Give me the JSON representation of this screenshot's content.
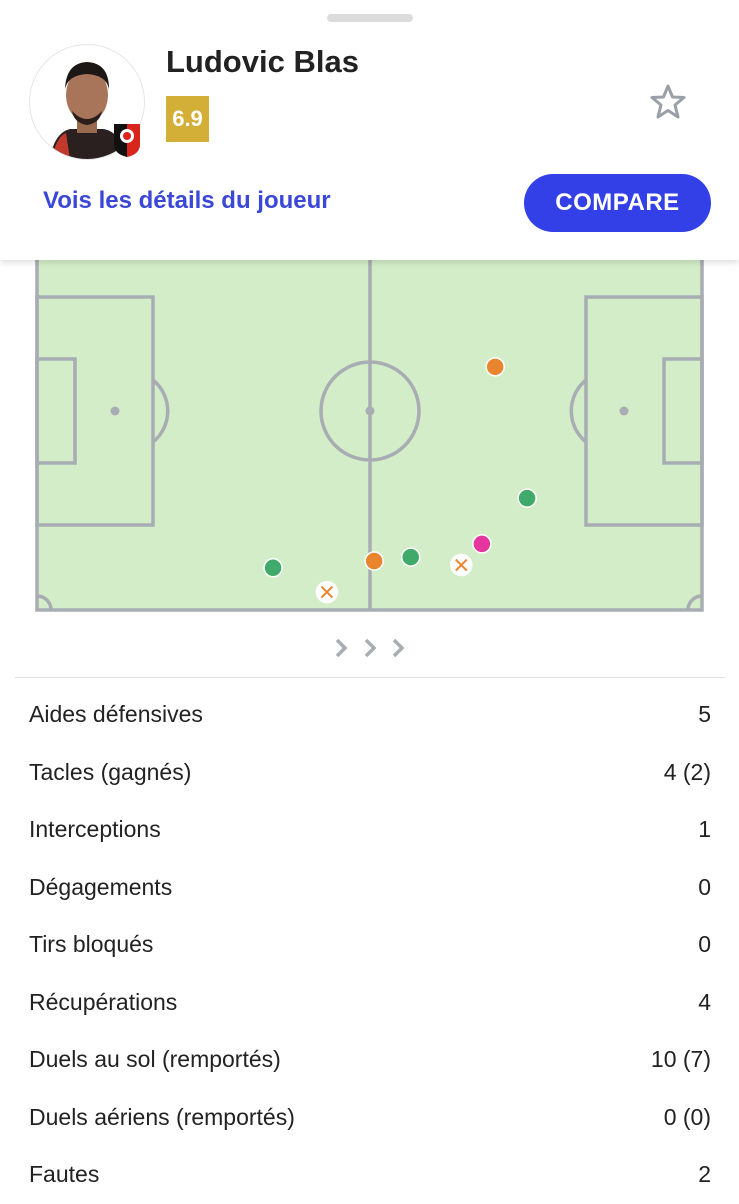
{
  "player": {
    "name": "Ludovic Blas",
    "rating": "6.9",
    "rating_color": "#d4af37",
    "details_link": "Vois les détails du joueur",
    "compare_label": "COMPARE",
    "favorite_icon": "star-outline-icon"
  },
  "colors": {
    "accent": "#3340e8",
    "pitch": "#d3edc8",
    "lines": "#a8acb3",
    "green": "#3faa6a",
    "orange": "#e8852e",
    "pink": "#e6369e"
  },
  "chart_data": {
    "type": "scatter",
    "coordinate_system": "pitch 0-100 (x: own goal to opponent goal, y: top to bottom touchline)",
    "points": [
      {
        "x": 68.9,
        "y": 38.9,
        "kind": "orange"
      },
      {
        "x": 73.7,
        "y": 71.9,
        "kind": "green"
      },
      {
        "x": 66.9,
        "y": 83.4,
        "kind": "pink"
      },
      {
        "x": 63.8,
        "y": 88.7,
        "kind": "cross"
      },
      {
        "x": 56.2,
        "y": 86.7,
        "kind": "green"
      },
      {
        "x": 50.7,
        "y": 87.7,
        "kind": "orange"
      },
      {
        "x": 35.5,
        "y": 89.4,
        "kind": "green"
      },
      {
        "x": 43.6,
        "y": 95.5,
        "kind": "cross"
      }
    ],
    "attack_direction": "right"
  },
  "stats": [
    {
      "label": "Aides défensives",
      "value": "5"
    },
    {
      "label": "Tacles (gagnés)",
      "value": "4 (2)"
    },
    {
      "label": "Interceptions",
      "value": "1"
    },
    {
      "label": "Dégagements",
      "value": "0"
    },
    {
      "label": "Tirs bloqués",
      "value": "0"
    },
    {
      "label": "Récupérations",
      "value": "4"
    },
    {
      "label": "Duels au sol (remportés)",
      "value": "10 (7)"
    },
    {
      "label": "Duels aériens (remportés)",
      "value": "0 (0)"
    },
    {
      "label": "Fautes",
      "value": "2"
    }
  ]
}
